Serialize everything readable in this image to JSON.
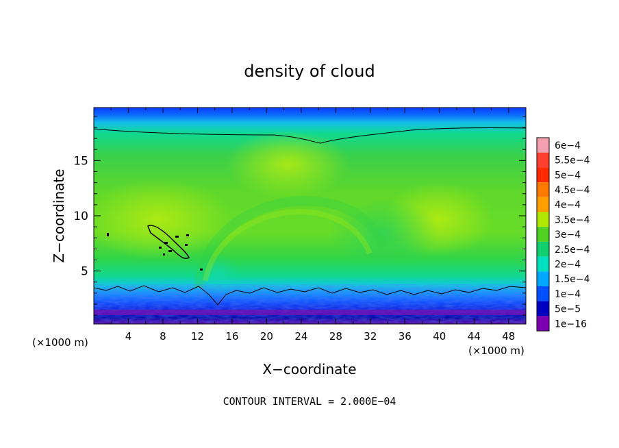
{
  "chart_data": {
    "type": "heatmap",
    "title": "density of cloud",
    "xlabel": "X−coordinate",
    "ylabel": "Z−coordinate",
    "x_unit_left": "(×1000 m)",
    "x_unit_right": "(×1000 m)",
    "xlim": [
      0,
      50
    ],
    "ylim": [
      0.2,
      19.8
    ],
    "x_ticks": [
      4,
      8,
      12,
      16,
      20,
      24,
      28,
      32,
      36,
      40,
      44,
      48
    ],
    "y_ticks": [
      5,
      10,
      15
    ],
    "footer": "CONTOUR INTERVAL = 2.000E−04",
    "colorbar": {
      "labels": [
        "6e−4",
        "5.5e−4",
        "5e−4",
        "4.5e−4",
        "4e−4",
        "3.5e−4",
        "3e−4",
        "2.5e−4",
        "2e−4",
        "1.5e−4",
        "1e−4",
        "5e−5",
        "1e−16"
      ],
      "colors": [
        "#f5a0b0",
        "#ff4030",
        "#ff2a00",
        "#ff7a00",
        "#ffa000",
        "#b0e800",
        "#50d020",
        "#10d070",
        "#00e0c0",
        "#00a8ff",
        "#0050ff",
        "#0000c0",
        "#7a00b0"
      ]
    },
    "contour_levels": [
      0.0002,
      0.0004
    ]
  }
}
